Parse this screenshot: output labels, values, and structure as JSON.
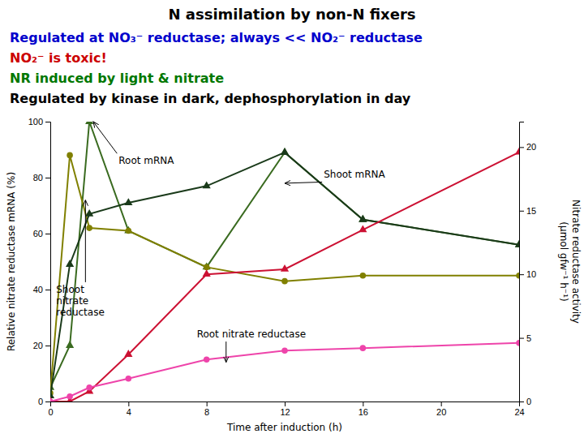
{
  "chart_data": {
    "type": "line",
    "title": "N assimilation by non-N fixers",
    "subtitle": [
      {
        "text": "Regulated at NO₃⁻ reductase; always << NO₂⁻ reductase",
        "color": "#0000CC"
      },
      {
        "text": "NO₂⁻ is toxic!",
        "color": "#CC0000"
      },
      {
        "text": "NR induced by light & nitrate",
        "color": "#007700"
      },
      {
        "text": "Regulated by kinase in dark, dephosphorylation in day",
        "color": "#000000"
      }
    ],
    "xlabel": "Time after induction (h)",
    "ylabel": "Relative nitrate reductase mRNA (%)",
    "y2label": "Nitrate reductase activity\n(μmol gfw⁻¹ h⁻¹)",
    "x": [
      0,
      1,
      2,
      4,
      8,
      12,
      16,
      24
    ],
    "xlim": [
      0,
      24
    ],
    "xticks": [
      0,
      4,
      8,
      12,
      16,
      20,
      24
    ],
    "ylim": [
      0,
      100
    ],
    "yticks": [
      0,
      20,
      40,
      60,
      80,
      100
    ],
    "y2lim": [
      0,
      22
    ],
    "y2ticks": [
      0,
      5,
      10,
      15,
      20
    ],
    "grid": false,
    "series": [
      {
        "color": "#3A6B20",
        "marker": "triangle",
        "values": [
          5,
          20,
          100,
          61,
          48,
          89,
          65,
          56
        ]
      },
      {
        "color": "#808000",
        "marker": "circle",
        "values": [
          3,
          88,
          62,
          61,
          48,
          43,
          45,
          45
        ]
      },
      {
        "color": "#1A3A1A",
        "marker": "triangle",
        "values": [
          2,
          49,
          67,
          71,
          77,
          89,
          65,
          56
        ]
      },
      {
        "color": "#CC1133",
        "marker": "triangle",
        "axis": "y2",
        "values": [
          0,
          0,
          0.8,
          3.7,
          10.0,
          10.4,
          13.5,
          19.6
        ]
      },
      {
        "color": "#EE44AA",
        "marker": "circle",
        "axis": "y2",
        "values": [
          0,
          0.4,
          1.1,
          1.8,
          3.3,
          4.0,
          4.2,
          4.6
        ]
      }
    ],
    "annotations": [
      {
        "text": "Root mRNA",
        "x": 2.2,
        "y": 100,
        "text_x": 3.5,
        "text_y": 88
      },
      {
        "text": "Shoot\nnitrate\nreductase",
        "x": 1.8,
        "y": 72,
        "text_x": 0.3,
        "text_y": 42
      },
      {
        "text": "Shoot mRNA",
        "x": 12,
        "y": 78,
        "text_x": 14,
        "text_y": 83
      },
      {
        "text": "Root nitrate reductase",
        "x": 9,
        "y": 14,
        "text_x": 7.5,
        "text_y": 26
      }
    ]
  }
}
